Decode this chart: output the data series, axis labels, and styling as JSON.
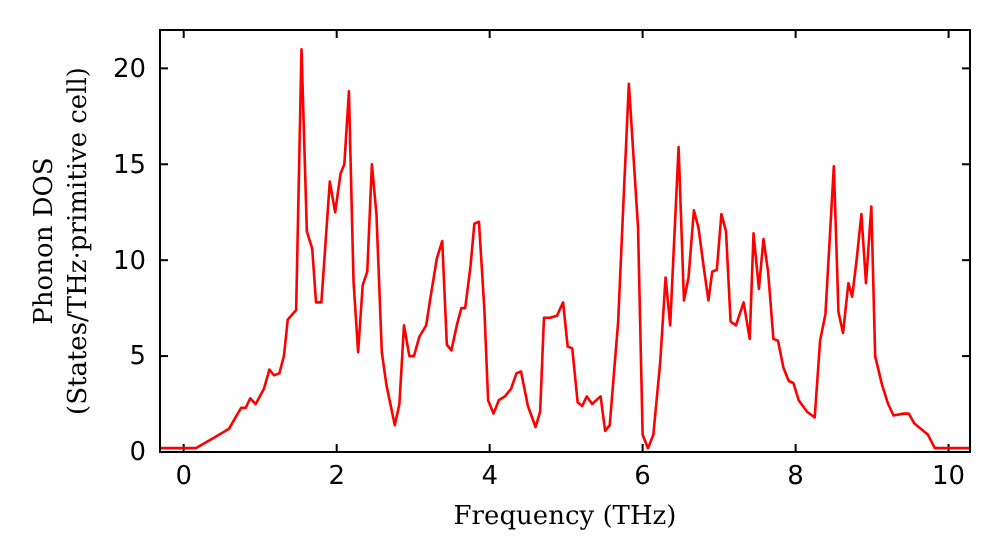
{
  "chart_data": {
    "type": "line",
    "xlabel": "Frequency (THz)",
    "ylabel": "Phonon DOS\n(States/THz·primitive cell)",
    "xlim": [
      -0.31,
      10.28
    ],
    "ylim": [
      0,
      22
    ],
    "xticks": [
      0,
      2,
      4,
      6,
      8,
      10
    ],
    "yticks": [
      0,
      5,
      10,
      15,
      20
    ],
    "marker": "none",
    "line_style": "solid",
    "series": [
      {
        "color": "#ff0000",
        "x": [
          -0.31,
          0.16,
          0.42,
          0.59,
          0.75,
          0.81,
          0.87,
          0.94,
          1.05,
          1.12,
          1.18,
          1.25,
          1.31,
          1.36,
          1.47,
          1.54,
          1.61,
          1.68,
          1.73,
          1.8,
          1.91,
          1.98,
          2.05,
          2.1,
          2.16,
          2.22,
          2.28,
          2.34,
          2.4,
          2.46,
          2.52,
          2.59,
          2.65,
          2.76,
          2.82,
          2.88,
          2.95,
          3.01,
          3.08,
          3.17,
          3.22,
          3.31,
          3.38,
          3.44,
          3.5,
          3.57,
          3.63,
          3.68,
          3.75,
          3.8,
          3.86,
          3.93,
          3.98,
          4.05,
          4.12,
          4.2,
          4.28,
          4.35,
          4.41,
          4.5,
          4.6,
          4.66,
          4.71,
          4.79,
          4.88,
          4.96,
          5.02,
          5.08,
          5.15,
          5.21,
          5.27,
          5.34,
          5.45,
          5.51,
          5.57,
          5.68,
          5.75,
          5.82,
          5.94,
          6.0,
          6.07,
          6.14,
          6.23,
          6.3,
          6.36,
          6.47,
          6.54,
          6.6,
          6.67,
          6.73,
          6.8,
          6.86,
          6.91,
          6.97,
          7.03,
          7.09,
          7.15,
          7.22,
          7.32,
          7.4,
          7.45,
          7.52,
          7.58,
          7.64,
          7.71,
          7.77,
          7.84,
          7.91,
          7.97,
          8.04,
          8.15,
          8.25,
          8.32,
          8.39,
          8.5,
          8.56,
          8.62,
          8.69,
          8.74,
          8.8,
          8.86,
          8.92,
          8.99,
          9.04,
          9.13,
          9.21,
          9.28,
          9.41,
          9.48,
          9.55,
          9.64,
          9.73,
          9.82,
          10.28
        ],
        "values": [
          0.2,
          0.2,
          0.8,
          1.2,
          2.3,
          2.3,
          2.8,
          2.5,
          3.3,
          4.3,
          4.0,
          4.1,
          5.0,
          6.9,
          7.4,
          21.0,
          11.5,
          10.6,
          7.8,
          7.8,
          14.1,
          12.5,
          14.5,
          15.0,
          18.8,
          8.9,
          5.2,
          8.7,
          9.4,
          15.0,
          12.4,
          5.2,
          3.5,
          1.4,
          2.5,
          6.6,
          5.0,
          5.0,
          6.0,
          6.6,
          7.9,
          10.1,
          11.0,
          5.6,
          5.3,
          6.6,
          7.5,
          7.5,
          9.7,
          11.9,
          12.0,
          7.5,
          2.7,
          2.0,
          2.7,
          2.9,
          3.3,
          4.1,
          4.2,
          2.4,
          1.3,
          2.1,
          7.0,
          7.0,
          7.1,
          7.8,
          5.5,
          5.4,
          2.6,
          2.4,
          2.9,
          2.5,
          2.9,
          1.1,
          1.4,
          6.8,
          13.1,
          19.2,
          11.7,
          0.9,
          0.2,
          0.9,
          4.7,
          9.1,
          6.6,
          15.9,
          7.9,
          9.1,
          12.6,
          11.7,
          9.6,
          7.9,
          9.4,
          9.5,
          12.4,
          11.5,
          6.8,
          6.6,
          7.8,
          5.9,
          11.4,
          8.5,
          11.1,
          9.4,
          5.9,
          5.8,
          4.4,
          3.7,
          3.6,
          2.7,
          2.1,
          1.8,
          5.8,
          7.2,
          14.9,
          7.3,
          6.2,
          8.8,
          8.1,
          10.1,
          12.4,
          8.8,
          12.8,
          5.0,
          3.5,
          2.5,
          1.9,
          2.0,
          2.0,
          1.5,
          1.2,
          0.9,
          0.2,
          0.2
        ]
      }
    ]
  }
}
